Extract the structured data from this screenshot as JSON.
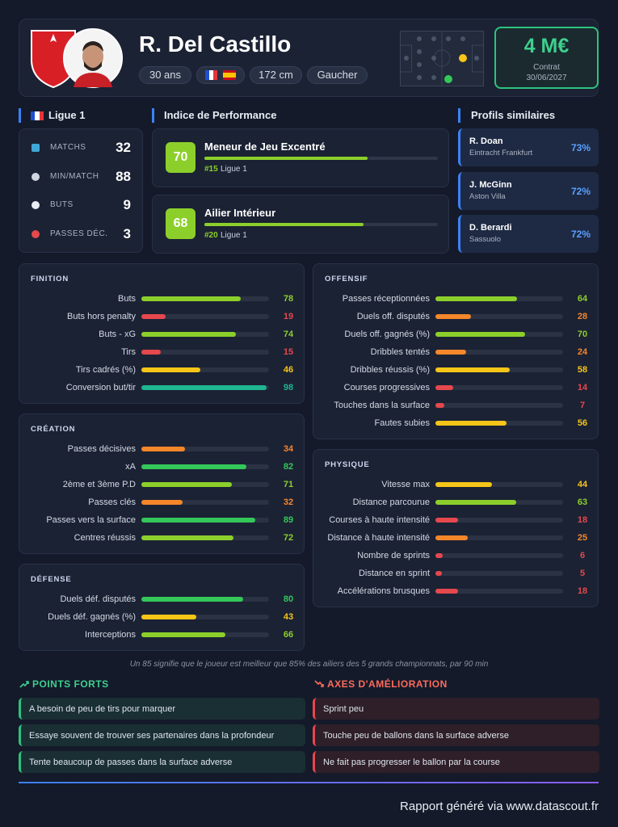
{
  "header": {
    "name": "R. Del Castillo",
    "age": "30 ans",
    "height": "172 cm",
    "foot": "Gaucher",
    "value": "4 M€",
    "contract_label": "Contrat",
    "contract_date": "30/06/2027"
  },
  "league": {
    "title": "Ligue 1",
    "stats": [
      {
        "label": "MATCHS",
        "value": 32
      },
      {
        "label": "MIN/MATCH",
        "value": 88
      },
      {
        "label": "BUTS",
        "value": 9
      },
      {
        "label": "PASSES DÉC.",
        "value": 3
      }
    ]
  },
  "performance": {
    "title": "Indice de Performance",
    "roles": [
      {
        "score": 70,
        "name": "Meneur de Jeu Excentré",
        "rank": "#15",
        "league": "Ligue 1",
        "color": "#8ccf2b"
      },
      {
        "score": 68,
        "name": "Ailier Intérieur",
        "rank": "#20",
        "league": "Ligue 1",
        "color": "#8ccf2b"
      }
    ]
  },
  "similar": {
    "title": "Profils similaires",
    "players": [
      {
        "name": "R. Doan",
        "club": "Eintracht Frankfurt",
        "match": "73%"
      },
      {
        "name": "J. McGinn",
        "club": "Aston Villa",
        "match": "72%"
      },
      {
        "name": "D. Berardi",
        "club": "Sassuolo",
        "match": "72%"
      }
    ]
  },
  "xlim": [
    0,
    100
  ],
  "sections": [
    {
      "title": "FINITION",
      "stats": [
        {
          "label": "Buts",
          "value": 78,
          "color": "#8ccf2b"
        },
        {
          "label": "Buts hors penalty",
          "value": 19,
          "color": "#e5484d"
        },
        {
          "label": "Buts - xG",
          "value": 74,
          "color": "#8ccf2b"
        },
        {
          "label": "Tirs",
          "value": 15,
          "color": "#e5484d"
        },
        {
          "label": "Tirs cadrés (%)",
          "value": 46,
          "color": "#f5c518"
        },
        {
          "label": "Conversion but/tir",
          "value": 98,
          "color": "#1eb58f"
        }
      ]
    },
    {
      "title": "CRÉATION",
      "stats": [
        {
          "label": "Passes décisives",
          "value": 34,
          "color": "#f5862a"
        },
        {
          "label": "xA",
          "value": 82,
          "color": "#34c759"
        },
        {
          "label": "2ème et 3ème P.D",
          "value": 71,
          "color": "#8ccf2b"
        },
        {
          "label": "Passes clés",
          "value": 32,
          "color": "#f5862a"
        },
        {
          "label": "Passes vers la surface",
          "value": 89,
          "color": "#34c759"
        },
        {
          "label": "Centres réussis",
          "value": 72,
          "color": "#8ccf2b"
        }
      ]
    },
    {
      "title": "DÉFENSE",
      "stats": [
        {
          "label": "Duels déf. disputés",
          "value": 80,
          "color": "#34c759"
        },
        {
          "label": "Duels déf. gagnés (%)",
          "value": 43,
          "color": "#f5c518"
        },
        {
          "label": "Interceptions",
          "value": 66,
          "color": "#8ccf2b"
        }
      ]
    },
    {
      "title": "OFFENSIF",
      "stats": [
        {
          "label": "Passes réceptionnées",
          "value": 64,
          "color": "#8ccf2b"
        },
        {
          "label": "Duels off. disputés",
          "value": 28,
          "color": "#f5862a"
        },
        {
          "label": "Duels off. gagnés (%)",
          "value": 70,
          "color": "#8ccf2b"
        },
        {
          "label": "Dribbles tentés",
          "value": 24,
          "color": "#f5862a"
        },
        {
          "label": "Dribbles réussis (%)",
          "value": 58,
          "color": "#f5c518"
        },
        {
          "label": "Courses progressives",
          "value": 14,
          "color": "#e5484d"
        },
        {
          "label": "Touches dans la surface",
          "value": 7,
          "color": "#e5484d"
        },
        {
          "label": "Fautes subies",
          "value": 56,
          "color": "#f5c518"
        }
      ]
    },
    {
      "title": "PHYSIQUE",
      "stats": [
        {
          "label": "Vitesse max",
          "value": 44,
          "color": "#f5c518"
        },
        {
          "label": "Distance parcourue",
          "value": 63,
          "color": "#8ccf2b"
        },
        {
          "label": "Courses à haute intensité",
          "value": 18,
          "color": "#e5484d"
        },
        {
          "label": "Distance à haute intensité",
          "value": 25,
          "color": "#f5862a"
        },
        {
          "label": "Nombre de sprints",
          "value": 6,
          "color": "#e5484d"
        },
        {
          "label": "Distance en sprint",
          "value": 5,
          "color": "#e5484d"
        },
        {
          "label": "Accélérations brusques",
          "value": 18,
          "color": "#e5484d"
        }
      ]
    }
  ],
  "footnote": "Un 85 signifie que le joueur est meilleur que 85% des ailiers des 5 grands championnats, par 90 min",
  "strengths": {
    "title": "POINTS FORTS",
    "items": [
      "A besoin de peu de tirs pour marquer",
      "Essaye souvent de trouver ses partenaires dans la profondeur",
      "Tente beaucoup de passes dans la surface adverse"
    ]
  },
  "improvements": {
    "title": "AXES D'AMÉLIORATION",
    "items": [
      "Sprint peu",
      "Touche peu de ballons dans la surface adverse",
      "Ne fait pas progresser le ballon par la course"
    ]
  },
  "footer": "Rapport généré via www.datascout.fr"
}
